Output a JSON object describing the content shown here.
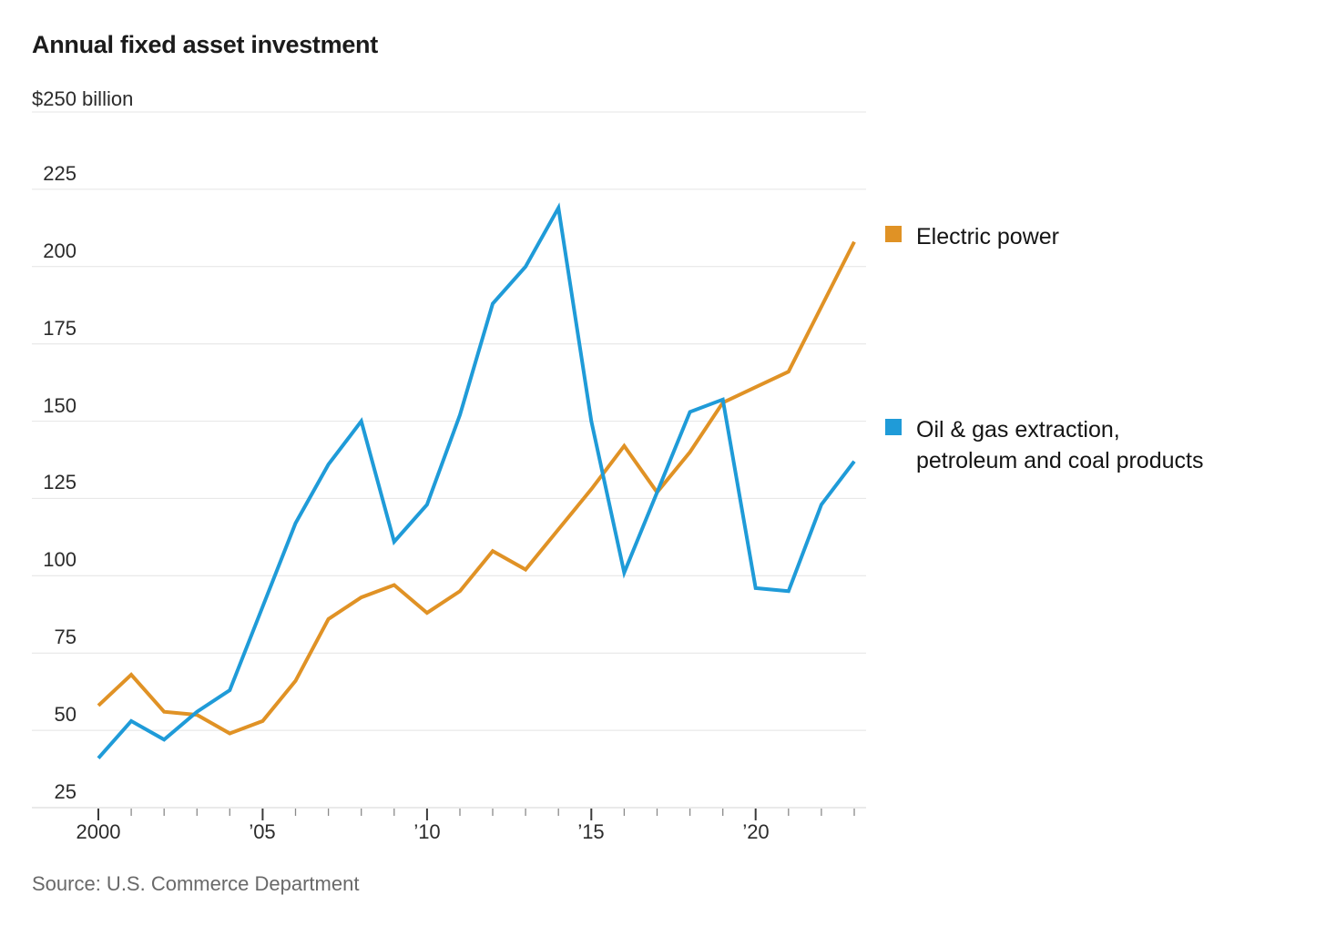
{
  "title": "Annual fixed asset investment",
  "y_axis": {
    "unit_label": "$250 billion",
    "gridline_values": [
      250,
      225,
      200,
      175,
      150,
      125,
      100,
      75,
      50,
      25
    ],
    "tick_labels": [
      "225",
      "200",
      "175",
      "150",
      "125",
      "100",
      "75",
      "50",
      "25"
    ]
  },
  "x_axis": {
    "major_ticks": [
      {
        "year": 2000,
        "label": "2000"
      },
      {
        "year": 2005,
        "label": "’05"
      },
      {
        "year": 2010,
        "label": "’10"
      },
      {
        "year": 2015,
        "label": "’15"
      },
      {
        "year": 2020,
        "label": "’20"
      }
    ]
  },
  "legend": {
    "items": [
      {
        "label_lines": [
          "Electric power"
        ],
        "color": "#E09225"
      },
      {
        "label_lines": [
          "Oil & gas extraction,",
          "petroleum and coal products"
        ],
        "color": "#1F9BD8"
      }
    ]
  },
  "source": "Source: U.S. Commerce Department",
  "colors": {
    "electric_power": "#E09225",
    "oil_gas": "#1F9BD8",
    "gridline": "#E4E4E4",
    "axis_line": "#D6D6D6",
    "minor_tick": "#8A8A8A",
    "major_tick": "#3A3A3A"
  },
  "chart_data": {
    "type": "line",
    "title": "Annual fixed asset investment",
    "ylabel": "$ billion",
    "ylim": [
      25,
      250
    ],
    "grid": "horizontal",
    "legend_position": "right",
    "x": [
      2000,
      2001,
      2002,
      2003,
      2004,
      2005,
      2006,
      2007,
      2008,
      2009,
      2010,
      2011,
      2012,
      2013,
      2014,
      2015,
      2016,
      2017,
      2018,
      2019,
      2020,
      2021,
      2022,
      2023
    ],
    "series": [
      {
        "name": "Electric power",
        "color": "#E09225",
        "values": [
          58,
          68,
          56,
          55,
          49,
          53,
          66,
          86,
          93,
          97,
          88,
          95,
          108,
          102,
          115,
          128,
          142,
          127,
          140,
          156,
          161,
          166,
          187,
          208
        ]
      },
      {
        "name": "Oil & gas extraction, petroleum and coal products",
        "color": "#1F9BD8",
        "values": [
          41,
          53,
          47,
          56,
          63,
          90,
          117,
          136,
          150,
          111,
          123,
          152,
          188,
          200,
          219,
          150,
          101,
          127,
          153,
          157,
          96,
          95,
          123,
          137
        ]
      }
    ]
  }
}
